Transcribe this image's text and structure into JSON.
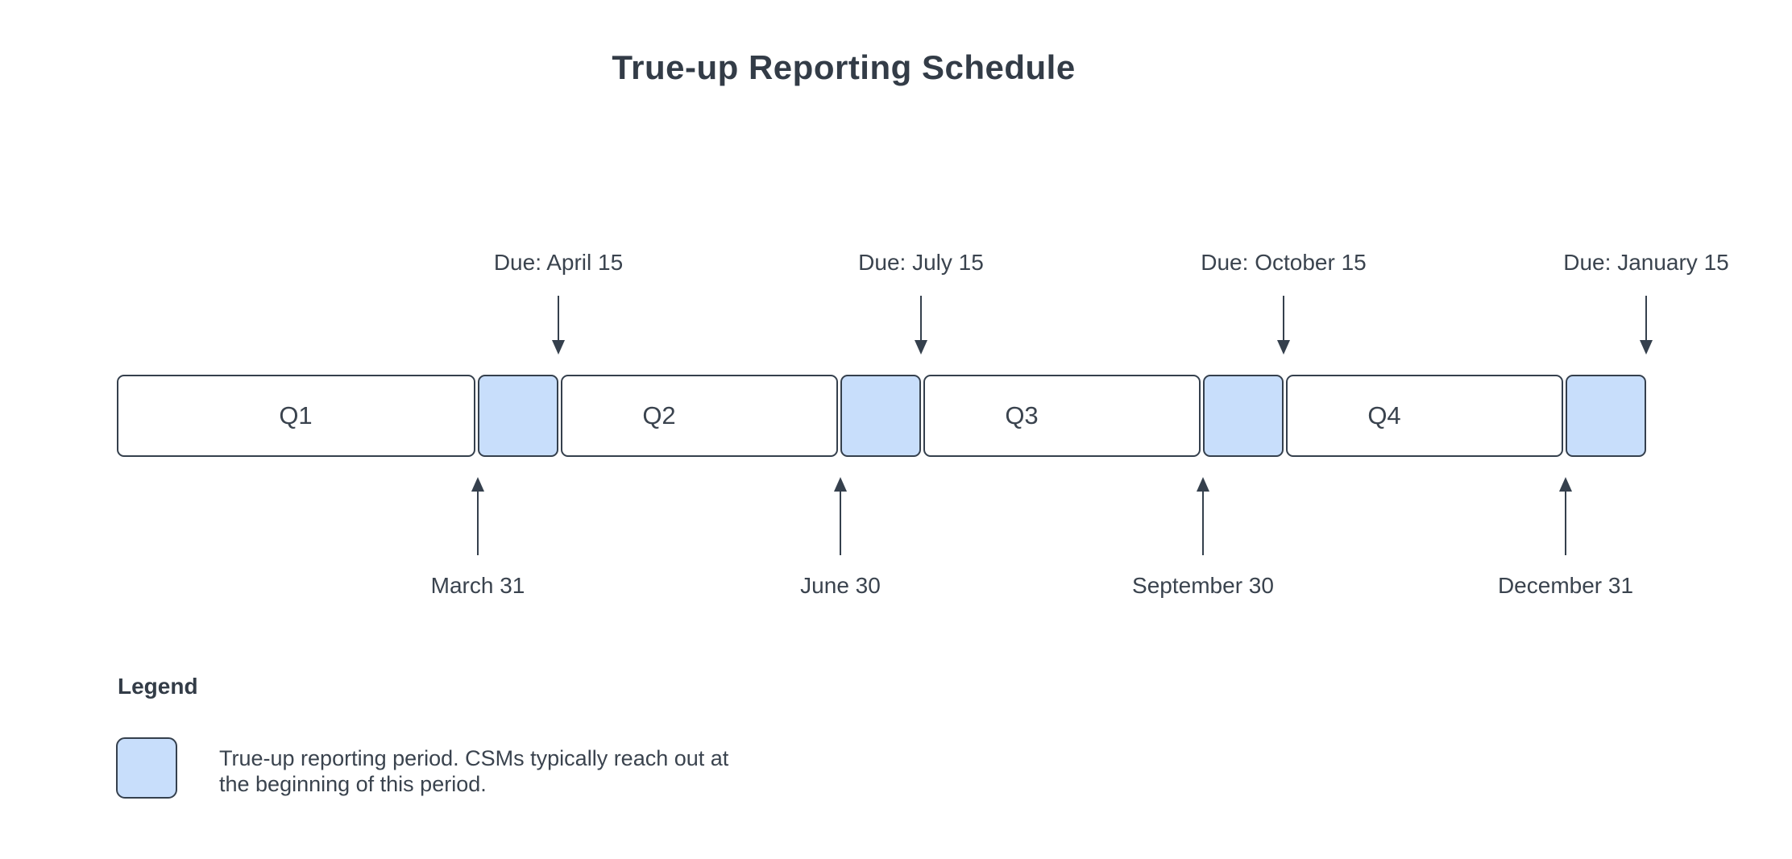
{
  "title": "True-up Reporting Schedule",
  "colors": {
    "highlight_fill": "#c8defb",
    "outline": "#35404d",
    "text": "#3a434e"
  },
  "timeline": {
    "quarters": [
      "Q1",
      "Q2",
      "Q3",
      "Q4"
    ],
    "due_dates": [
      "Due: April 15",
      "Due: July 15",
      "Due: October 15",
      "Due: January 15"
    ],
    "period_end_dates": [
      "March 31",
      "June 30",
      "September 30",
      "December 31"
    ]
  },
  "legend": {
    "heading": "Legend",
    "line1": "True-up reporting period. CSMs typically reach out at",
    "line2": "the beginning of this period."
  }
}
